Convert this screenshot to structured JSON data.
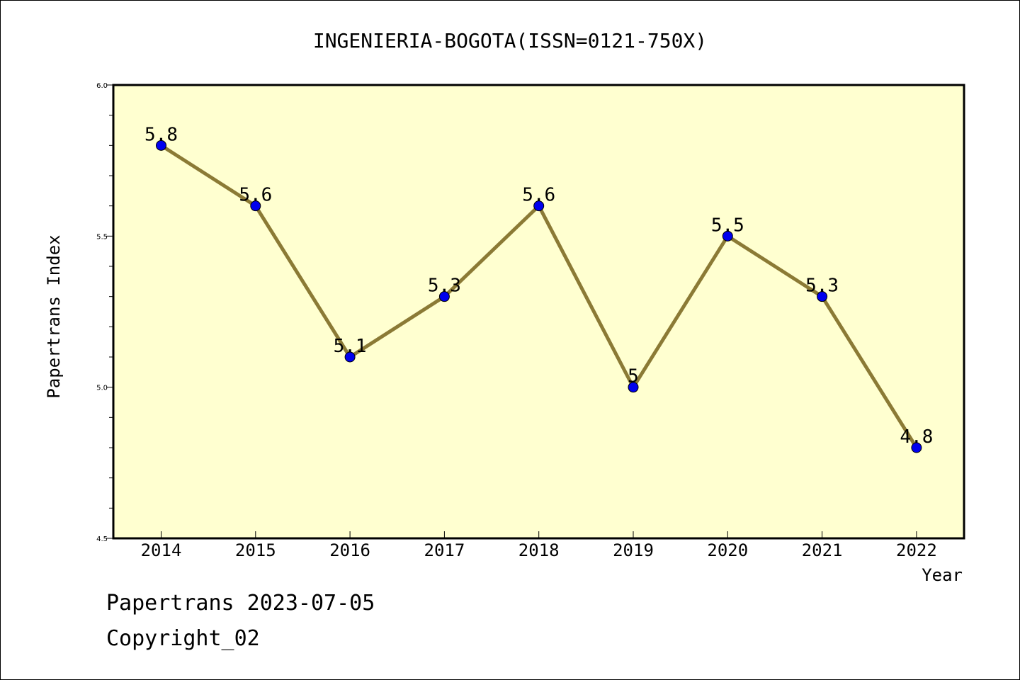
{
  "chart_data": {
    "type": "line",
    "title": "INGENIERIA-BOGOTA(ISSN=0121-750X)",
    "xlabel": "Year",
    "ylabel": "Papertrans Index",
    "categories": [
      "2014",
      "2015",
      "2016",
      "2017",
      "2018",
      "2019",
      "2020",
      "2021",
      "2022"
    ],
    "series": [
      {
        "values": [
          5.8,
          5.6,
          5.1,
          5.3,
          5.6,
          5.0,
          5.5,
          5.3,
          4.8
        ],
        "labels": [
          "5.8",
          "5.6",
          "5.1",
          "5.3",
          "5.6",
          "5",
          "5.5",
          "5.3",
          "4.8"
        ],
        "line_color": "#8B7A35",
        "marker_color": "#0000EE"
      }
    ],
    "ylim": [
      4.5,
      6.0
    ],
    "yticks": [
      "4.5",
      "5.0",
      "5.5",
      "6.0"
    ],
    "plot_background": "#FFFFD0",
    "grid": false
  },
  "footer": {
    "line1": "Papertrans 2023-07-05",
    "line2": "Copyright_02"
  }
}
